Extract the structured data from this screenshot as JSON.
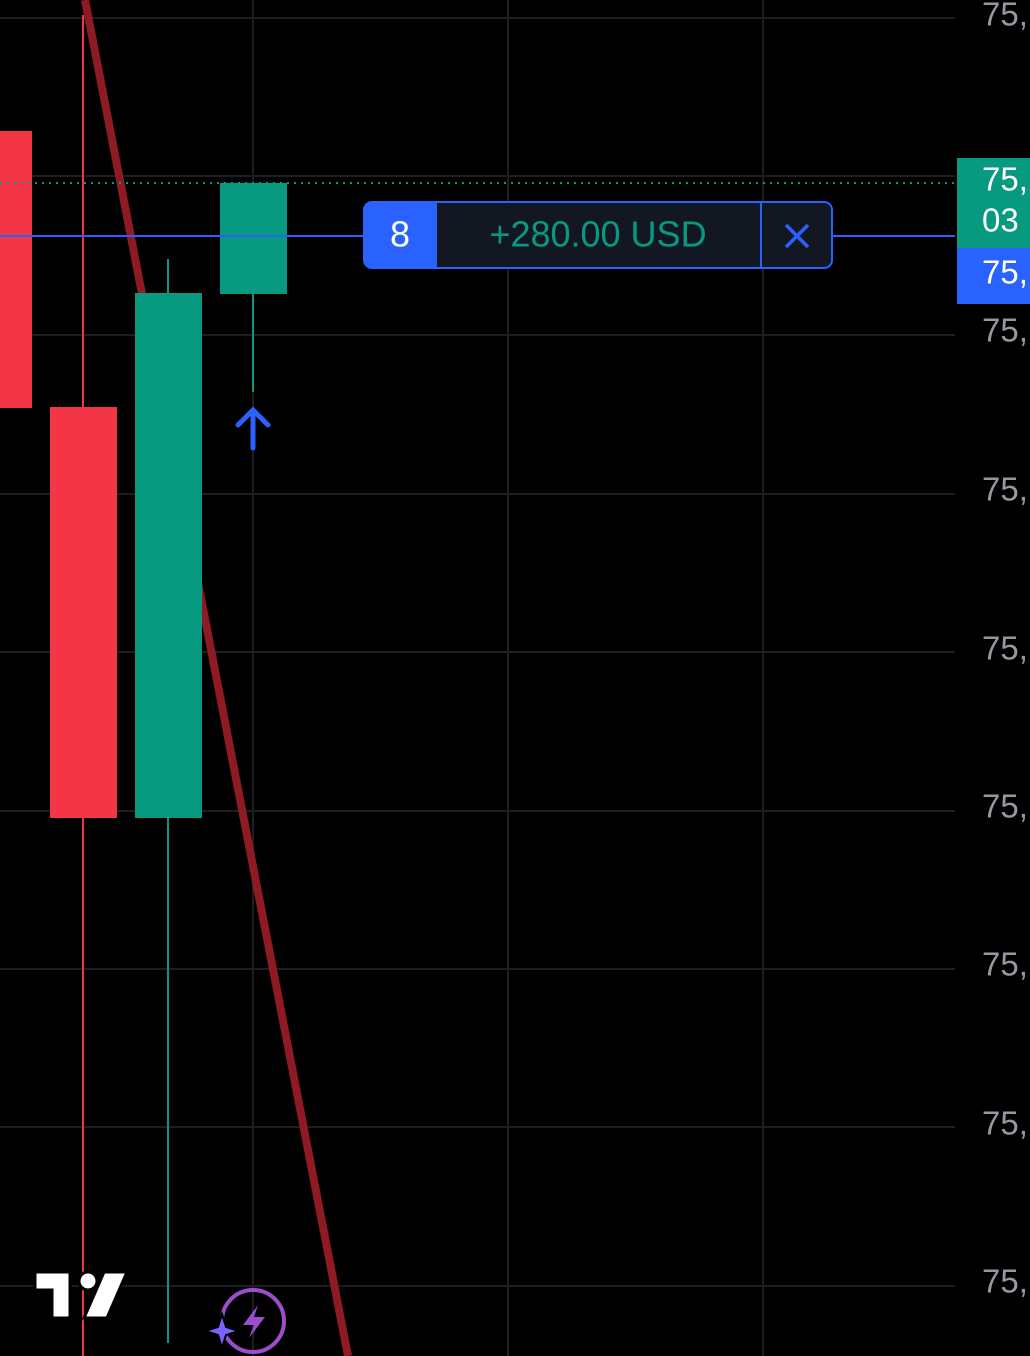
{
  "price_axis": {
    "labels": [
      "75,",
      "75,",
      "75,",
      "75,",
      "75,",
      "75,",
      "75,",
      "75,"
    ]
  },
  "last_price_tag": {
    "price": "75,",
    "countdown": "03"
  },
  "position_price_tag": {
    "price": "75,"
  },
  "position": {
    "quantity": "8",
    "pnl": "+280.00 USD"
  }
}
